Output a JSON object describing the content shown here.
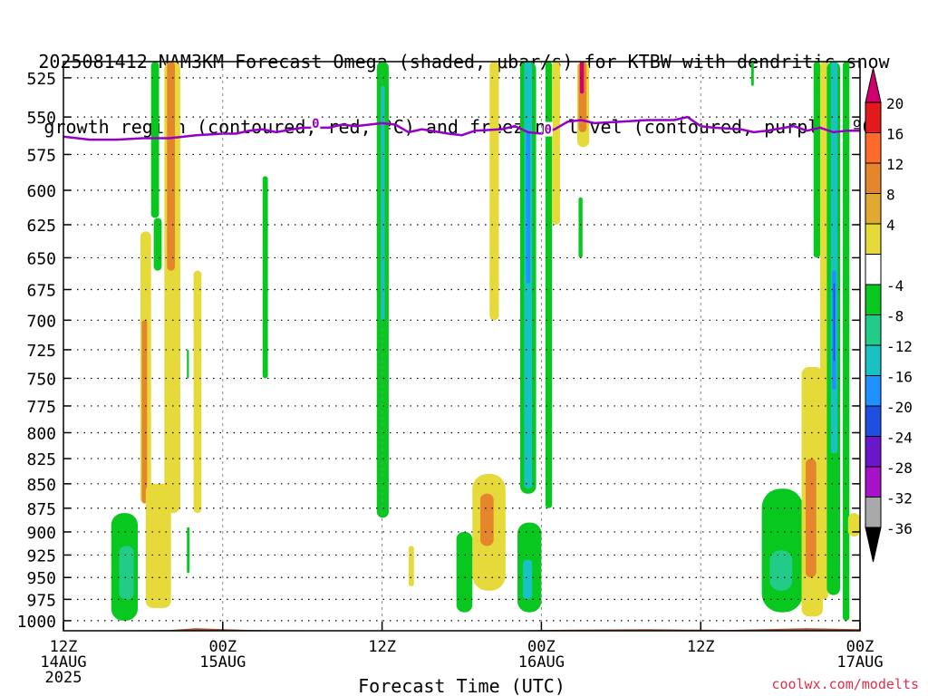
{
  "title": {
    "line1": "2025081412 NAM3KM Forecast Omega (shaded, μbar/s) for KTBW with dendritic snow",
    "line2": "growth region (contoured, red, ºC) and freezing level (contoured, purple, ºC)"
  },
  "credit": "coolwx.com/modelts",
  "chart_data": {
    "type": "heatmap",
    "xlabel": "Forecast Time (UTC)",
    "x_ticks": [
      {
        "hour": 0,
        "lines": [
          "12Z",
          "14AUG",
          "2025"
        ]
      },
      {
        "hour": 12,
        "lines": [
          "00Z",
          "15AUG"
        ]
      },
      {
        "hour": 24,
        "lines": [
          "12Z"
        ]
      },
      {
        "hour": 36,
        "lines": [
          "00Z",
          "16AUG"
        ]
      },
      {
        "hour": 48,
        "lines": [
          "12Z"
        ]
      },
      {
        "hour": 60,
        "lines": [
          "00Z",
          "17AUG"
        ]
      }
    ],
    "xlim": [
      0,
      60
    ],
    "y_scale": "log-pressure",
    "ylim_hPa": [
      1012,
      515
    ],
    "y_ticks": [
      525,
      550,
      575,
      600,
      625,
      650,
      675,
      700,
      725,
      750,
      775,
      800,
      825,
      850,
      875,
      900,
      925,
      950,
      975,
      1000
    ],
    "grid": true,
    "colorbar": {
      "labels": [
        "20",
        "16",
        "12",
        "8",
        "4",
        "-4",
        "-8",
        "-12",
        "-16",
        "-20",
        "-24",
        "-28",
        "-32",
        "-36"
      ],
      "bins": [
        {
          "color": "#d0006e"
        },
        {
          "color": "#e31a1c"
        },
        {
          "color": "#ff6a2a"
        },
        {
          "color": "#e5862c"
        },
        {
          "color": "#e1a832"
        },
        {
          "color": "#e6d93a"
        },
        {
          "color": "#ffffff"
        },
        {
          "color": "#08c81f"
        },
        {
          "color": "#22cc88"
        },
        {
          "color": "#19c2c2"
        },
        {
          "color": "#1e90ff"
        },
        {
          "color": "#1f4fe0"
        },
        {
          "color": "#6a16c9"
        },
        {
          "color": "#a512c8"
        },
        {
          "color": "#a9a9a9"
        },
        {
          "color": "#000000"
        }
      ]
    },
    "freezing_level": {
      "label": "0",
      "color": "#9400c8",
      "points": [
        [
          0,
          563
        ],
        [
          2,
          565
        ],
        [
          4,
          565
        ],
        [
          6,
          564
        ],
        [
          8,
          564
        ],
        [
          10,
          562
        ],
        [
          12,
          561
        ],
        [
          13,
          561
        ],
        [
          14,
          559
        ],
        [
          15,
          558
        ],
        [
          16,
          560
        ],
        [
          18,
          557
        ],
        [
          20,
          557
        ],
        [
          21,
          555
        ],
        [
          22,
          556
        ],
        [
          24,
          554
        ],
        [
          25,
          555
        ],
        [
          26,
          560
        ],
        [
          27,
          558
        ],
        [
          29,
          561
        ],
        [
          30,
          562
        ],
        [
          31,
          559
        ],
        [
          33,
          558
        ],
        [
          34,
          556
        ],
        [
          35,
          560
        ],
        [
          36,
          561
        ],
        [
          37,
          558
        ],
        [
          38,
          553
        ],
        [
          39,
          552
        ],
        [
          40,
          554
        ],
        [
          42,
          553
        ],
        [
          44,
          552
        ],
        [
          46,
          552
        ],
        [
          47,
          550
        ],
        [
          48,
          556
        ],
        [
          49,
          557
        ],
        [
          51,
          558
        ],
        [
          52,
          560
        ],
        [
          53,
          559
        ],
        [
          55,
          556
        ],
        [
          56,
          559
        ],
        [
          57,
          557
        ],
        [
          58,
          560
        ],
        [
          59,
          559
        ],
        [
          60,
          559
        ]
      ],
      "label_at": [
        [
          19,
          554
        ],
        [
          36.5,
          558
        ]
      ]
    },
    "shaded_regions": [
      {
        "color": "#08c81f",
        "x": [
          6.6,
          7.2
        ],
        "p": [
          515,
          620
        ],
        "shape": "column"
      },
      {
        "color": "#08c81f",
        "x": [
          6.8,
          7.4
        ],
        "p": [
          620,
          660
        ],
        "shape": "column"
      },
      {
        "color": "#e6d93a",
        "x": [
          7.6,
          8.8
        ],
        "p": [
          515,
          880
        ],
        "shape": "column"
      },
      {
        "color": "#e5862c",
        "x": [
          7.8,
          8.4
        ],
        "p": [
          515,
          660
        ],
        "shape": "column"
      },
      {
        "color": "#e6d93a",
        "x": [
          5.8,
          6.6
        ],
        "p": [
          630,
          870
        ],
        "shape": "column"
      },
      {
        "color": "#e5862c",
        "x": [
          5.9,
          6.3
        ],
        "p": [
          700,
          870
        ],
        "shape": "column"
      },
      {
        "color": "#e6d93a",
        "x": [
          6.2,
          8.1
        ],
        "p": [
          850,
          985
        ],
        "shape": "column"
      },
      {
        "color": "#08c81f",
        "x": [
          3.6,
          5.6
        ],
        "p": [
          880,
          1000
        ],
        "shape": "blob"
      },
      {
        "color": "#22cc88",
        "x": [
          4.2,
          5.3
        ],
        "p": [
          915,
          975
        ],
        "shape": "blob"
      },
      {
        "color": "#e6d93a",
        "x": [
          9.8,
          10.4
        ],
        "p": [
          660,
          880
        ],
        "shape": "column"
      },
      {
        "color": "#08c81f",
        "x": [
          9.3,
          9.45
        ],
        "p": [
          725,
          750
        ],
        "shape": "column"
      },
      {
        "color": "#08c81f",
        "x": [
          9.3,
          9.5
        ],
        "p": [
          895,
          945
        ],
        "shape": "column"
      },
      {
        "color": "#08c81f",
        "x": [
          15.0,
          15.4
        ],
        "p": [
          590,
          750
        ],
        "shape": "column"
      },
      {
        "color": "#08c81f",
        "x": [
          23.6,
          24.5
        ],
        "p": [
          515,
          885
        ],
        "shape": "column"
      },
      {
        "color": "#19c2c2",
        "x": [
          23.9,
          24.2
        ],
        "p": [
          530,
          700
        ],
        "shape": "column"
      },
      {
        "color": "#e6d93a",
        "x": [
          26.0,
          26.4
        ],
        "p": [
          915,
          960
        ],
        "shape": "column"
      },
      {
        "color": "#e6d93a",
        "x": [
          32.1,
          32.8
        ],
        "p": [
          515,
          700
        ],
        "shape": "column"
      },
      {
        "color": "#e6d93a",
        "x": [
          30.8,
          33.3
        ],
        "p": [
          840,
          965
        ],
        "shape": "blob"
      },
      {
        "color": "#e5862c",
        "x": [
          31.4,
          32.4
        ],
        "p": [
          860,
          915
        ],
        "shape": "blob"
      },
      {
        "color": "#08c81f",
        "x": [
          29.6,
          30.8
        ],
        "p": [
          900,
          990
        ],
        "shape": "blob"
      },
      {
        "color": "#08c81f",
        "x": [
          34.4,
          35.6
        ],
        "p": [
          515,
          860
        ],
        "shape": "column"
      },
      {
        "color": "#19c2c2",
        "x": [
          34.7,
          35.3
        ],
        "p": [
          515,
          855
        ],
        "shape": "column"
      },
      {
        "color": "#1e90ff",
        "x": [
          34.85,
          35.15
        ],
        "p": [
          560,
          670
        ],
        "shape": "column"
      },
      {
        "color": "#08c81f",
        "x": [
          34.2,
          36.0
        ],
        "p": [
          890,
          990
        ],
        "shape": "blob"
      },
      {
        "color": "#19c2c2",
        "x": [
          34.6,
          35.3
        ],
        "p": [
          930,
          975
        ],
        "shape": "blob"
      },
      {
        "color": "#08c81f",
        "x": [
          36.3,
          36.8
        ],
        "p": [
          515,
          875
        ],
        "shape": "column"
      },
      {
        "color": "#e6d93a",
        "x": [
          36.8,
          37.4
        ],
        "p": [
          515,
          625
        ],
        "shape": "column"
      },
      {
        "color": "#e6d93a",
        "x": [
          38.7,
          39.6
        ],
        "p": [
          515,
          570
        ],
        "shape": "column"
      },
      {
        "color": "#e5862c",
        "x": [
          38.8,
          39.4
        ],
        "p": [
          515,
          560
        ],
        "shape": "column"
      },
      {
        "color": "#d0006e",
        "x": [
          38.9,
          39.2
        ],
        "p": [
          515,
          535
        ],
        "shape": "column"
      },
      {
        "color": "#08c81f",
        "x": [
          38.8,
          39.1
        ],
        "p": [
          605,
          650
        ],
        "shape": "column"
      },
      {
        "color": "#08c81f",
        "x": [
          51.8,
          52.0
        ],
        "p": [
          515,
          530
        ],
        "shape": "column"
      },
      {
        "color": "#08c81f",
        "x": [
          52.6,
          55.7
        ],
        "p": [
          855,
          990
        ],
        "shape": "blob"
      },
      {
        "color": "#22cc88",
        "x": [
          53.2,
          54.9
        ],
        "p": [
          920,
          965
        ],
        "shape": "blob"
      },
      {
        "color": "#e6d93a",
        "x": [
          55.6,
          57.2
        ],
        "p": [
          740,
          995
        ],
        "shape": "column"
      },
      {
        "color": "#e5862c",
        "x": [
          55.9,
          56.7
        ],
        "p": [
          825,
          950
        ],
        "shape": "column"
      },
      {
        "color": "#08c81f",
        "x": [
          56.5,
          57.0
        ],
        "p": [
          515,
          650
        ],
        "shape": "column"
      },
      {
        "color": "#e6d93a",
        "x": [
          57.0,
          57.6
        ],
        "p": [
          515,
          975
        ],
        "shape": "column"
      },
      {
        "color": "#08c81f",
        "x": [
          57.5,
          58.5
        ],
        "p": [
          515,
          970
        ],
        "shape": "column"
      },
      {
        "color": "#19c2c2",
        "x": [
          57.8,
          58.3
        ],
        "p": [
          515,
          820
        ],
        "shape": "column"
      },
      {
        "color": "#1e90ff",
        "x": [
          57.9,
          58.2
        ],
        "p": [
          660,
          760
        ],
        "shape": "column"
      },
      {
        "color": "#1f4fe0",
        "x": [
          58.0,
          58.1
        ],
        "p": [
          670,
          735
        ],
        "shape": "column"
      },
      {
        "color": "#08c81f",
        "x": [
          58.7,
          59.2
        ],
        "p": [
          515,
          1000
        ],
        "shape": "column"
      },
      {
        "color": "#e6d93a",
        "x": [
          59.1,
          60.0
        ],
        "p": [
          880,
          905
        ],
        "shape": "column"
      }
    ],
    "terrain": {
      "color": "#a0522d",
      "surface_hPa": [
        [
          0,
          1012
        ],
        [
          8,
          1011
        ],
        [
          10,
          1009
        ],
        [
          14,
          1011
        ],
        [
          24,
          1012
        ],
        [
          28,
          1013
        ],
        [
          36,
          1011
        ],
        [
          44,
          1010
        ],
        [
          50,
          1011
        ],
        [
          56,
          1009
        ],
        [
          60,
          1010
        ]
      ]
    }
  }
}
